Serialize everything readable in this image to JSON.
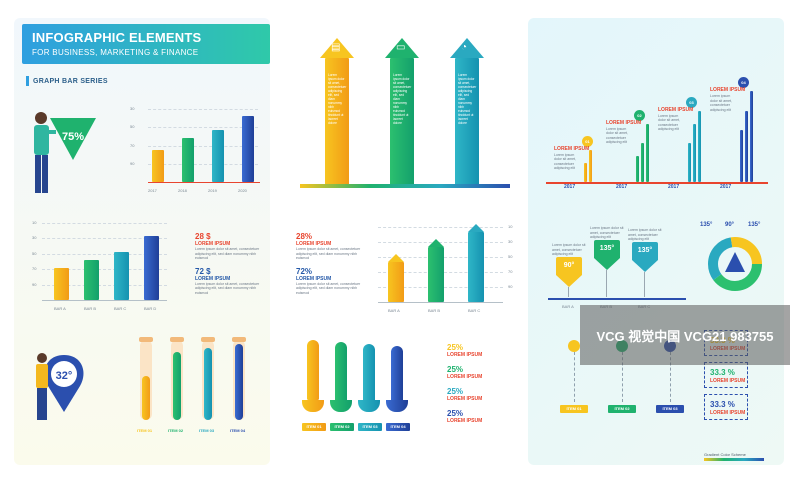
{
  "header": {
    "title": "INFOGRAPHIC ELEMENTS",
    "subtitle": "FOR BUSINESS, MARKETING & FINANCE"
  },
  "section_label": "GRAPH BAR SERIES",
  "chart1": {
    "percent_badge": "75%",
    "y_ticks": [
      "90",
      "70",
      "50",
      "30"
    ],
    "years": [
      "2017",
      "2018",
      "2019",
      "2020"
    ],
    "values": [
      40,
      55,
      65,
      82
    ],
    "colors": [
      "yellow",
      "green",
      "teal",
      "blue"
    ]
  },
  "chart2": {
    "y_ticks": [
      "90",
      "70",
      "50",
      "30",
      "10"
    ],
    "labels": [
      "BAR A",
      "BAR B",
      "BAR C",
      "BAR D"
    ],
    "values": [
      40,
      50,
      60,
      80
    ],
    "colors": [
      "yellow",
      "green",
      "teal",
      "blue"
    ]
  },
  "money_block": {
    "v1": "28 $",
    "v2": "72 $",
    "lorem": "LOREM IPSUM",
    "body": "Lorem ipsum dolor sit amet, consectetuer adipiscing elit, sed diam nonummy nibh euismod"
  },
  "pin": {
    "value": "32°"
  },
  "thermometers": {
    "items": [
      "ITEM 01",
      "ITEM 02",
      "ITEM 03",
      "ITEM 04"
    ],
    "levels": [
      0.55,
      0.85,
      0.9,
      0.95
    ],
    "colors": [
      "yellow",
      "green",
      "teal",
      "blue"
    ]
  },
  "arrows": {
    "body": "Lorem ipsum dolor sit amet, consectetuer adipiscing elit, sed diam nonummy nibh euismod tincidunt ut laoreet dolore"
  },
  "middle_block": {
    "v1": "28%",
    "v2": "72%",
    "lorem": "LOREM IPSUM",
    "body": "Lorem ipsum dolor sit amet, consectetuer adipiscing elit, sed diam nonummy nibh euismod",
    "y_ticks": [
      "90",
      "70",
      "50",
      "30",
      "10"
    ],
    "labels": [
      "BAR A",
      "BAR B",
      "BAR C"
    ]
  },
  "curve_block": {
    "items": [
      "ITEM 01",
      "ITEM 02",
      "ITEM 03",
      "ITEM 04"
    ],
    "percents": [
      "25%",
      "25%",
      "25%",
      "25%"
    ],
    "lorem": "LOREM IPSUM"
  },
  "timeline": {
    "years": [
      "2017",
      "2017",
      "2017",
      "2017"
    ],
    "markers": [
      "01",
      "02",
      "03",
      "04"
    ],
    "lorem": "LOREM IPSUM",
    "body": "Lorem ipsum dolor sit amet, consectetuer adipiscing elit"
  },
  "shields": {
    "values": [
      "90°",
      "135°",
      "135°"
    ],
    "labels": [
      "BAR A",
      "BAR B",
      "BAR C"
    ],
    "body": "Lorem ipsum dolor sit amet, consectetuer adipiscing elit"
  },
  "donut": {
    "labels": [
      "135°",
      "90°",
      "135°"
    ]
  },
  "lollipop": {
    "items": [
      "ITEM 01",
      "ITEM 02",
      "ITEM 03"
    ],
    "percents": [
      "33.3 %",
      "33.3 %",
      "33.3 %"
    ],
    "lorem": "LOREM IPSUM"
  },
  "footer": {
    "text": "Gradient Color Scheme"
  },
  "watermark": "VCG 视觉中国 VCG21 983755",
  "colors": {
    "yellow": "#f7c520",
    "green": "#1fb26e",
    "teal": "#2aa9c0",
    "blue": "#2b4fae",
    "red": "#e8452f"
  }
}
